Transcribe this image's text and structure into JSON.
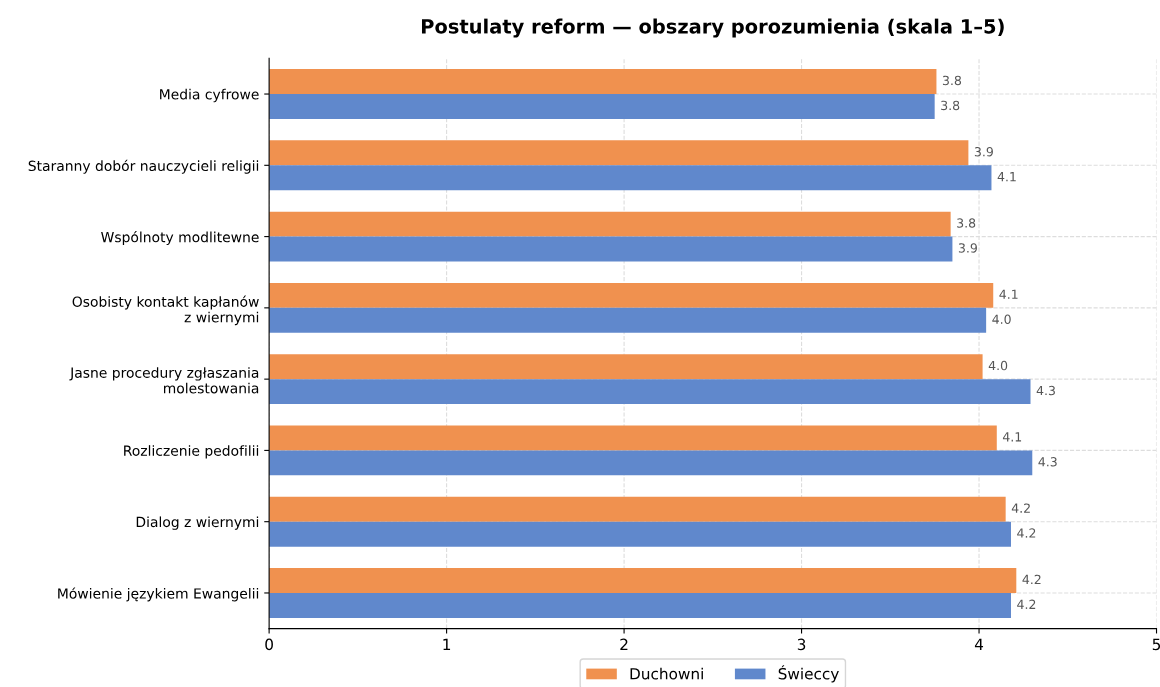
{
  "chart_data": {
    "type": "bar",
    "orientation": "horizontal",
    "title": "Postulaty reform — obszary porozumienia (skala 1–5)",
    "categories": [
      "Media cyfrowe",
      "Staranny dobór nauczycieli religii",
      "Wspólnoty modlitewne",
      "Osobisty kontakt kapłanów\nz wiernymi",
      "Jasne procedury zgłaszania\nmolestowania",
      "Rozliczenie pedofilii",
      "Dialog z wiernymi",
      "Mówienie językiem Ewangelii"
    ],
    "series": [
      {
        "name": "Duchowni",
        "color": "#f0914f",
        "values": [
          3.76,
          3.94,
          3.84,
          4.08,
          4.02,
          4.1,
          4.15,
          4.21
        ],
        "value_labels": [
          "3.8",
          "3.9",
          "3.8",
          "4.1",
          "4.0",
          "4.1",
          "4.2",
          "4.2"
        ]
      },
      {
        "name": "Świeccy",
        "color": "#6088cc",
        "values": [
          3.75,
          4.07,
          3.85,
          4.04,
          4.29,
          4.3,
          4.18,
          4.18
        ],
        "value_labels": [
          "3.8",
          "4.1",
          "3.9",
          "4.0",
          "4.3",
          "4.3",
          "4.2",
          "4.2"
        ]
      }
    ],
    "xlim": [
      0,
      5
    ],
    "xticks": [
      0,
      1,
      2,
      3,
      4,
      5
    ],
    "grid": true,
    "legend": "bottom"
  }
}
